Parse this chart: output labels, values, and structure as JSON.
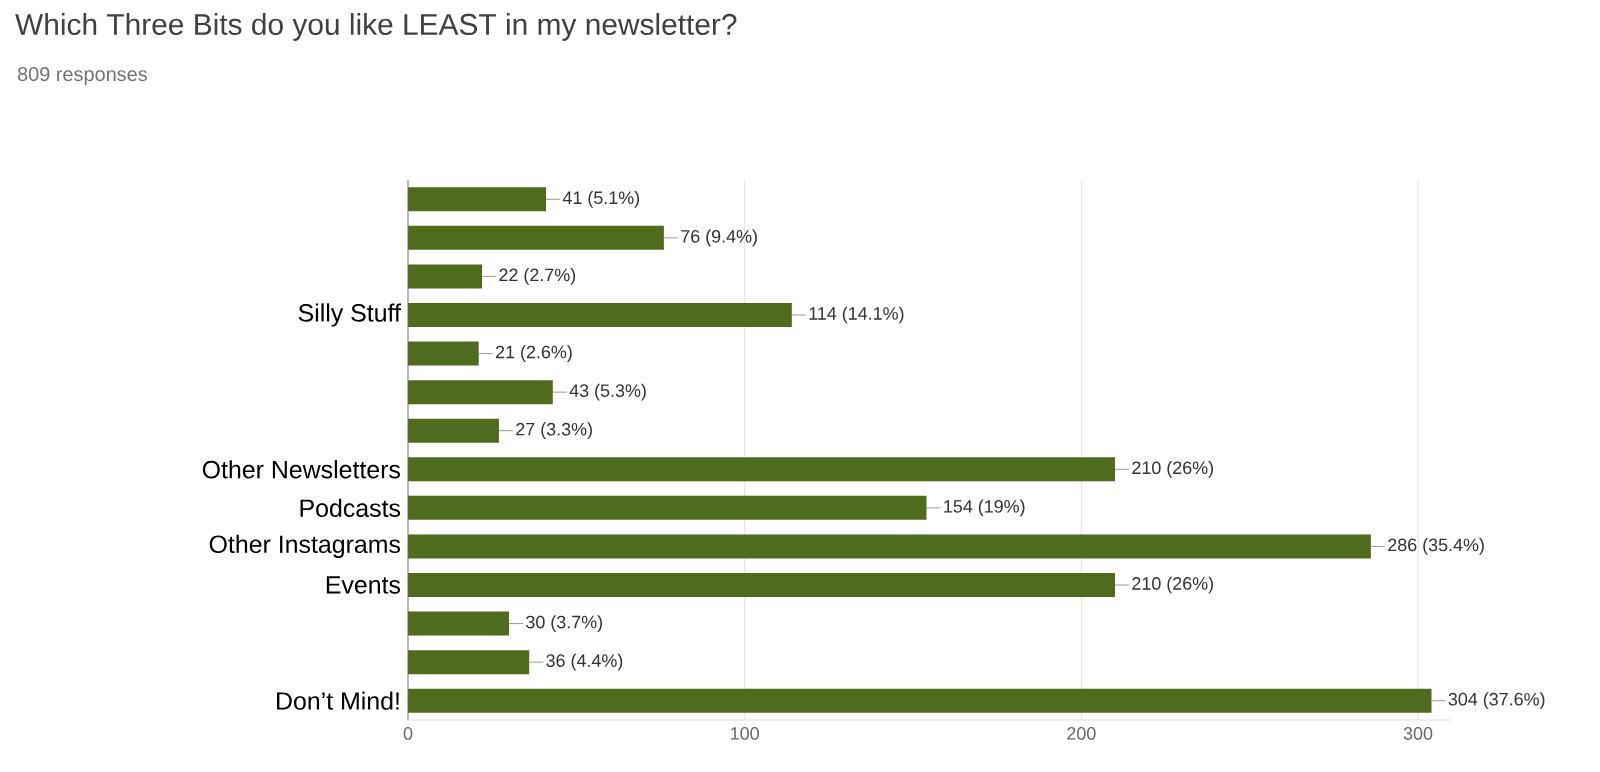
{
  "chart_data": {
    "type": "bar",
    "orientation": "horizontal",
    "title": "Which Three Bits do you like LEAST in my newsletter?",
    "subtitle": "809 responses",
    "categories": [
      null,
      null,
      null,
      "Silly Stuff",
      null,
      null,
      null,
      "Other Newsletters",
      "Podcasts",
      "Other Instagrams",
      "Events",
      null,
      null,
      "Don’t Mind!"
    ],
    "values": [
      41,
      76,
      22,
      114,
      21,
      43,
      27,
      210,
      154,
      286,
      210,
      30,
      36,
      304
    ],
    "value_labels": [
      "41 (5.1%)",
      "76 (9.4%)",
      "22 (2.7%)",
      "114 (14.1%)",
      "21 (2.6%)",
      "43 (5.3%)",
      "27 (3.3%)",
      "210 (26%)",
      "154 (19%)",
      "286 (35.4%)",
      "210 (26%)",
      "30 (3.7%)",
      "36 (4.4%)",
      "304 (37.6%)"
    ],
    "color": "#4f6b1e",
    "xlim": [
      0,
      310
    ],
    "xticks": [
      0,
      100,
      200,
      300
    ],
    "grid": "x"
  }
}
